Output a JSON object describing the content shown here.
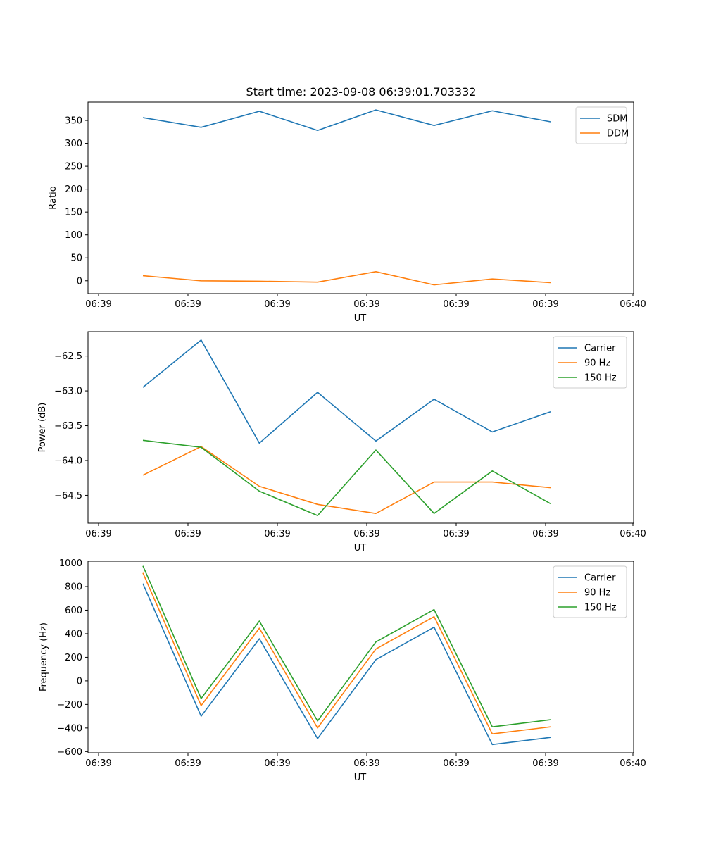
{
  "figure": {
    "title": "Start time: 2023-09-08 06:39:01.703332",
    "x_tick_labels": [
      "06:39",
      "06:39",
      "06:39",
      "06:39",
      "06:39",
      "06:39",
      "06:40"
    ]
  },
  "chart_data": [
    {
      "type": "line",
      "title": "Start time: 2023-09-08 06:39:01.703332",
      "xlabel": "UT",
      "ylabel": "Ratio",
      "x": [
        1,
        2,
        3,
        4,
        5,
        6,
        7,
        8
      ],
      "xlim": [
        0.5,
        9.75
      ],
      "ylim": [
        -28,
        390
      ],
      "yticks": [
        0,
        50,
        100,
        150,
        200,
        250,
        300,
        350
      ],
      "ytick_labels": [
        "0",
        "50",
        "100",
        "150",
        "200",
        "250",
        "300",
        "350"
      ],
      "legend_position": "top-right",
      "series": [
        {
          "name": "SDM",
          "color": "#1f77b4",
          "values": [
            356,
            335,
            370,
            328,
            373,
            339,
            371,
            347
          ]
        },
        {
          "name": "DDM",
          "color": "#ff7f0e",
          "values": [
            11,
            0,
            -1,
            -3,
            20,
            -9,
            4,
            -4
          ]
        }
      ]
    },
    {
      "type": "line",
      "title": "",
      "xlabel": "UT",
      "ylabel": "Power (dB)",
      "x": [
        1,
        2,
        3,
        4,
        5,
        6,
        7,
        8
      ],
      "xlim": [
        0.5,
        9.75
      ],
      "ylim": [
        -64.9,
        -62.15
      ],
      "yticks": [
        -62.5,
        -63.0,
        -63.5,
        -64.0,
        -64.5
      ],
      "ytick_labels": [
        "−62.5",
        "−63.0",
        "−63.5",
        "−64.0",
        "−64.5"
      ],
      "legend_position": "top-right",
      "series": [
        {
          "name": "Carrier",
          "color": "#1f77b4",
          "values": [
            -62.95,
            -62.27,
            -63.75,
            -63.02,
            -63.72,
            -63.12,
            -63.59,
            -63.3
          ]
        },
        {
          "name": "90 Hz",
          "color": "#ff7f0e",
          "values": [
            -64.21,
            -63.8,
            -64.37,
            -64.63,
            -64.76,
            -64.31,
            -64.31,
            -64.39
          ]
        },
        {
          "name": "150 Hz",
          "color": "#2ca02c",
          "values": [
            -63.71,
            -63.81,
            -64.44,
            -64.79,
            -63.85,
            -64.76,
            -64.15,
            -64.62
          ]
        }
      ]
    },
    {
      "type": "line",
      "title": "",
      "xlabel": "UT",
      "ylabel": "Frequency (Hz)",
      "x": [
        1,
        2,
        3,
        4,
        5,
        6,
        7,
        8
      ],
      "xlim": [
        0.5,
        9.75
      ],
      "ylim": [
        -610,
        1015
      ],
      "yticks": [
        1000,
        800,
        600,
        400,
        200,
        0,
        -200,
        -400,
        -600
      ],
      "ytick_labels": [
        "1000",
        "800",
        "600",
        "400",
        "200",
        "0",
        "−200",
        "−400",
        "−600"
      ],
      "legend_position": "top-right",
      "series": [
        {
          "name": "Carrier",
          "color": "#1f77b4",
          "values": [
            825,
            -300,
            357,
            -490,
            180,
            455,
            -540,
            -480
          ]
        },
        {
          "name": "90 Hz",
          "color": "#ff7f0e",
          "values": [
            915,
            -210,
            447,
            -400,
            270,
            545,
            -450,
            -390
          ]
        },
        {
          "name": "150 Hz",
          "color": "#2ca02c",
          "values": [
            975,
            -150,
            507,
            -340,
            330,
            605,
            -390,
            -330
          ]
        }
      ]
    }
  ]
}
